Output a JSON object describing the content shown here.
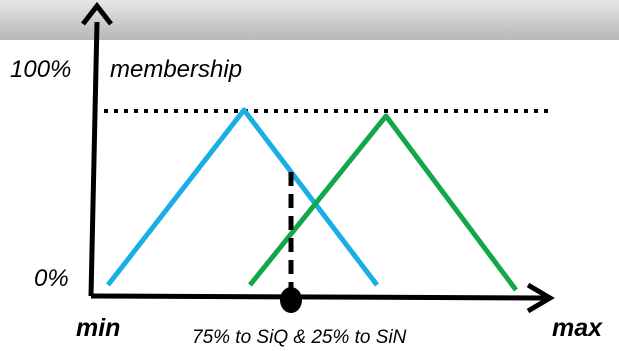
{
  "labels": {
    "y_top": "100%",
    "membership": "membership",
    "y_bottom": "0%",
    "x_min": "min",
    "x_max": "max",
    "caption": "75% to SiQ & 25% to SiN"
  },
  "colors": {
    "background": "#ffffff",
    "banner_top": "#e6e6e6",
    "banner_bottom": "#b8b8b8",
    "axis": "#000000",
    "triangle_left": "#19aee6",
    "triangle_right": "#12a84a",
    "guide": "#000000"
  },
  "icons": {
    "y_axis_arrow": "arrow-up-icon",
    "x_axis_arrow": "arrow-right-icon",
    "marker": "filled-circle-icon"
  }
}
